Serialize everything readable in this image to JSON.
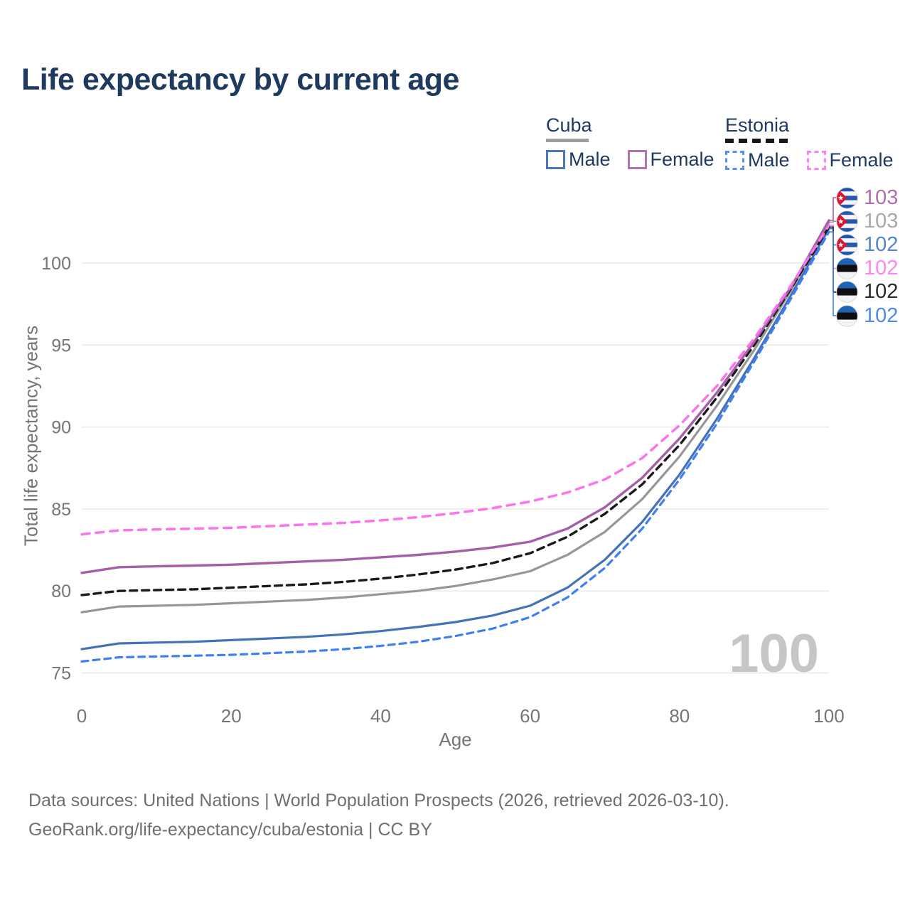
{
  "header": {
    "title": "Life expectancy by current age"
  },
  "legend": {
    "groups": [
      {
        "label": "Cuba",
        "line_style": "solid",
        "underline_color": "#9e9e9e",
        "items": [
          {
            "label": "Male",
            "color": "#4a78bb",
            "dash": "solid"
          },
          {
            "label": "Female",
            "color": "#b173ae",
            "dash": "solid"
          }
        ]
      },
      {
        "label": "Estonia",
        "line_style": "dashed",
        "underline_color": "#161616",
        "items": [
          {
            "label": "Male",
            "color": "#5590f5",
            "dash": "dashed"
          },
          {
            "label": "Female",
            "color": "#ff80f0",
            "dash": "dashed"
          }
        ]
      }
    ]
  },
  "chart_data": {
    "type": "line",
    "title": "Life expectancy by current age",
    "xlabel": "Age",
    "ylabel": "Total life expectancy, years",
    "xlim": [
      0,
      100
    ],
    "ylim": [
      75,
      100
    ],
    "xticks": [
      0,
      20,
      40,
      60,
      80,
      100
    ],
    "yticks": [
      75,
      80,
      85,
      90,
      95,
      100
    ],
    "grid": "horizontal",
    "legend_position": "top-right",
    "x": [
      0,
      5,
      10,
      15,
      20,
      25,
      30,
      35,
      40,
      45,
      50,
      55,
      60,
      65,
      70,
      75,
      80,
      85,
      90,
      95,
      100
    ],
    "series": [
      {
        "id": "cuba-female",
        "name": "Cuba Female",
        "country": "Cuba",
        "sex": "Female",
        "color": "#a55fa8",
        "dash": "solid",
        "end_label": "103",
        "values": [
          81.1,
          81.45,
          81.5,
          81.55,
          81.6,
          81.7,
          81.8,
          81.9,
          82.05,
          82.2,
          82.4,
          82.65,
          83.0,
          83.8,
          85.1,
          86.9,
          89.3,
          92.1,
          95.2,
          98.6,
          102.6
        ]
      },
      {
        "id": "cuba-all",
        "name": "Cuba All",
        "country": "Cuba",
        "sex": "All",
        "color": "#979797",
        "dash": "solid",
        "end_label": "103",
        "values": [
          78.7,
          79.05,
          79.1,
          79.15,
          79.25,
          79.35,
          79.45,
          79.6,
          79.8,
          80.0,
          80.3,
          80.7,
          81.2,
          82.2,
          83.6,
          85.6,
          88.2,
          91.3,
          94.7,
          98.4,
          102.5
        ]
      },
      {
        "id": "cuba-male",
        "name": "Cuba Male",
        "country": "Cuba",
        "sex": "Male",
        "color": "#4472b7",
        "dash": "solid",
        "end_label": "102",
        "values": [
          76.45,
          76.8,
          76.85,
          76.9,
          77.0,
          77.1,
          77.2,
          77.35,
          77.55,
          77.8,
          78.1,
          78.5,
          79.1,
          80.2,
          81.9,
          84.2,
          87.1,
          90.5,
          94.2,
          98.1,
          102.1
        ]
      },
      {
        "id": "estonia-female",
        "name": "Estonia Female",
        "country": "Estonia",
        "sex": "Female",
        "color": "#fb74ee",
        "dash": "dashed",
        "end_label": "102",
        "values": [
          83.45,
          83.7,
          83.75,
          83.8,
          83.85,
          83.95,
          84.05,
          84.15,
          84.3,
          84.5,
          84.75,
          85.05,
          85.45,
          86.0,
          86.8,
          88.1,
          90.1,
          92.5,
          95.4,
          98.7,
          102.3
        ]
      },
      {
        "id": "estonia-all",
        "name": "Estonia All",
        "country": "Estonia",
        "sex": "All",
        "color": "#1a1a1a",
        "dash": "dashed",
        "end_label": "102",
        "values": [
          79.75,
          80.0,
          80.05,
          80.1,
          80.2,
          80.3,
          80.4,
          80.55,
          80.75,
          81.0,
          81.3,
          81.7,
          82.3,
          83.3,
          84.7,
          86.5,
          88.9,
          91.8,
          95.0,
          98.5,
          102.2
        ]
      },
      {
        "id": "estonia-male",
        "name": "Estonia Male",
        "country": "Estonia",
        "sex": "Male",
        "color": "#3f7ff2",
        "dash": "dashed",
        "end_label": "102",
        "values": [
          75.7,
          75.95,
          76.0,
          76.05,
          76.1,
          76.2,
          76.3,
          76.45,
          76.65,
          76.9,
          77.25,
          77.7,
          78.4,
          79.6,
          81.4,
          83.8,
          86.8,
          90.2,
          94.0,
          97.9,
          101.9
        ]
      }
    ]
  },
  "endpoints": [
    {
      "value": "103",
      "color": "#b16cb1",
      "icon": "cuba-flag-icon",
      "series": 0
    },
    {
      "value": "103",
      "color": "#a8a8a8",
      "icon": "cuba-flag-icon",
      "series": 1
    },
    {
      "value": "102",
      "color": "#5585c9",
      "icon": "cuba-flag-icon",
      "series": 2
    },
    {
      "value": "102",
      "color": "#fb86f1",
      "icon": "estonia-flag-icon",
      "series": 3
    },
    {
      "value": "102",
      "color": "#2b2b2b",
      "icon": "estonia-flag-icon",
      "series": 4
    },
    {
      "value": "102",
      "color": "#4f88ef",
      "icon": "estonia-flag-icon",
      "series": 5
    }
  ],
  "watermark": "100",
  "footer": {
    "line1": "Data sources: United Nations | World Population Prospects (2026, retrieved 2026-03-10).",
    "line2": "GeoRank.org/life-expectancy/cuba/estonia | CC BY"
  }
}
